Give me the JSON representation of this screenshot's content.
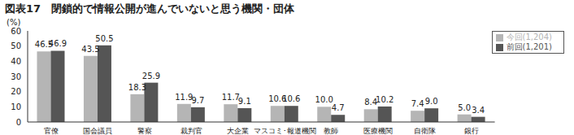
{
  "chart_data": {
    "type": "bar",
    "title": "図表17　閉鎖的で情報公開が進んでいないと思う機関・団体",
    "ylabel": "(%)",
    "categories": [
      "官僚",
      "国会議員",
      "警察",
      "裁判官",
      "大企業",
      "マスコミ･報道機関",
      "教師",
      "医療機関",
      "自衛隊",
      "銀行"
    ],
    "series": [
      {
        "name": "今回(1,204)",
        "color": "#b5b5b5",
        "values": [
          46.5,
          43.5,
          18.3,
          11.9,
          11.7,
          10.6,
          10.0,
          8.4,
          7.4,
          5.0
        ]
      },
      {
        "name": "前回(1,201)",
        "color": "#555555",
        "values": [
          46.9,
          50.5,
          25.9,
          9.7,
          9.1,
          10.6,
          4.7,
          10.2,
          9.0,
          3.4
        ]
      }
    ],
    "ylim": [
      0,
      60
    ],
    "yticks": [
      0,
      10,
      20,
      30,
      40,
      50,
      60
    ],
    "grid": false,
    "legend": "top-right",
    "data_labels": true
  }
}
